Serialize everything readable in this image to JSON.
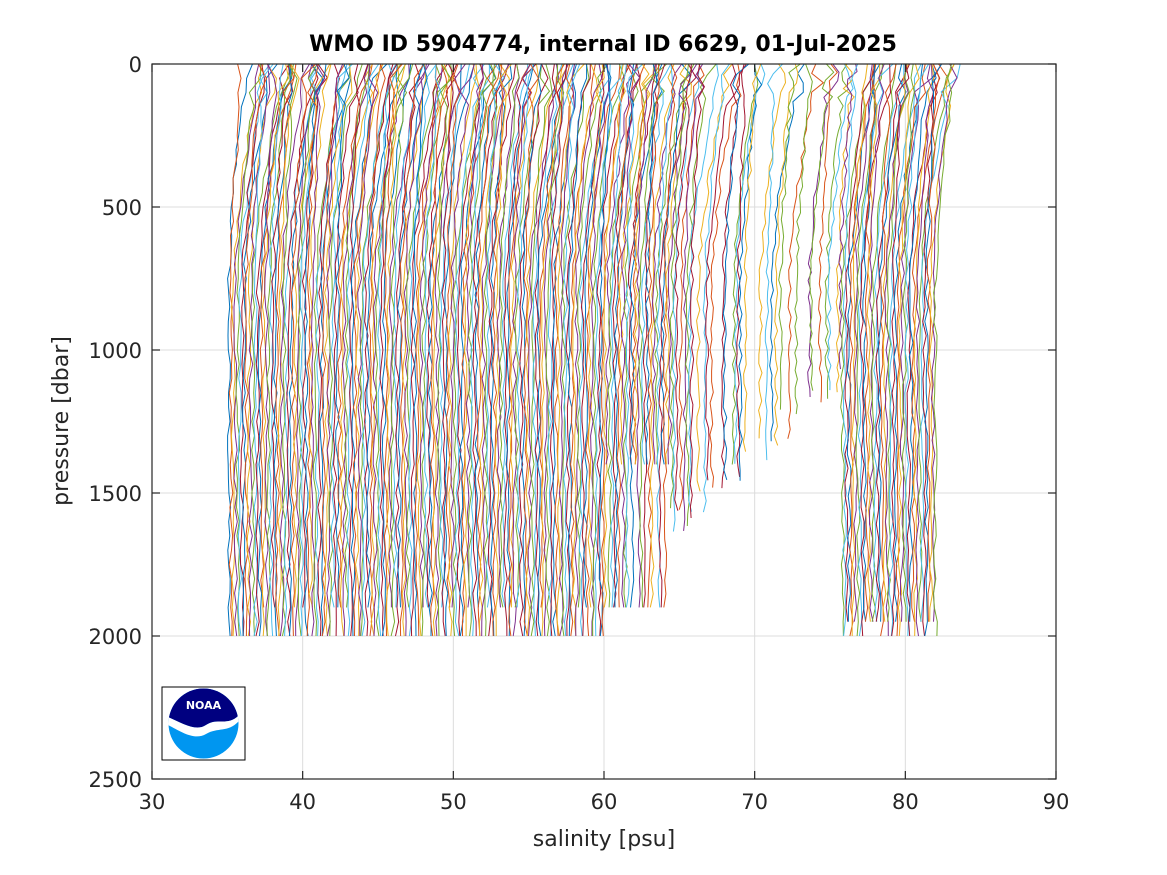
{
  "chart_data": {
    "type": "line",
    "title": "WMO ID 5904774, internal ID 6629, 01-Jul-2025",
    "xlabel": "salinity [psu]",
    "ylabel": "pressure [dbar]",
    "xlim": [
      30,
      90
    ],
    "ylim": [
      0,
      2500
    ],
    "y_reversed": true,
    "grid": true,
    "x_ticks": [
      30,
      40,
      50,
      60,
      70,
      80,
      90
    ],
    "y_ticks": [
      0,
      500,
      1000,
      1500,
      2000,
      2500
    ],
    "x_tick_labels": [
      "30",
      "40",
      "50",
      "60",
      "70",
      "80",
      "90"
    ],
    "y_tick_labels": [
      "0",
      "500",
      "1000",
      "1500",
      "2000",
      "2500"
    ],
    "series_colors": [
      "#0072bd",
      "#d95319",
      "#edb120",
      "#7e2f8e",
      "#77ac30",
      "#4dbeee",
      "#a2142f"
    ],
    "profiles": {
      "description_free": true,
      "count": 320,
      "surface_salinity_start": 35.8,
      "bottom_salinity_start": 35.1,
      "bottom_salinity_end": 82.0,
      "max_pressure_values": [
        2000,
        1900,
        1400,
        1300,
        1950
      ],
      "gap_start_salinity": 64.5,
      "gap_end_salinity": 75.8
    },
    "logo": "noaa-logo"
  },
  "logo": {
    "text": "NOAA"
  }
}
